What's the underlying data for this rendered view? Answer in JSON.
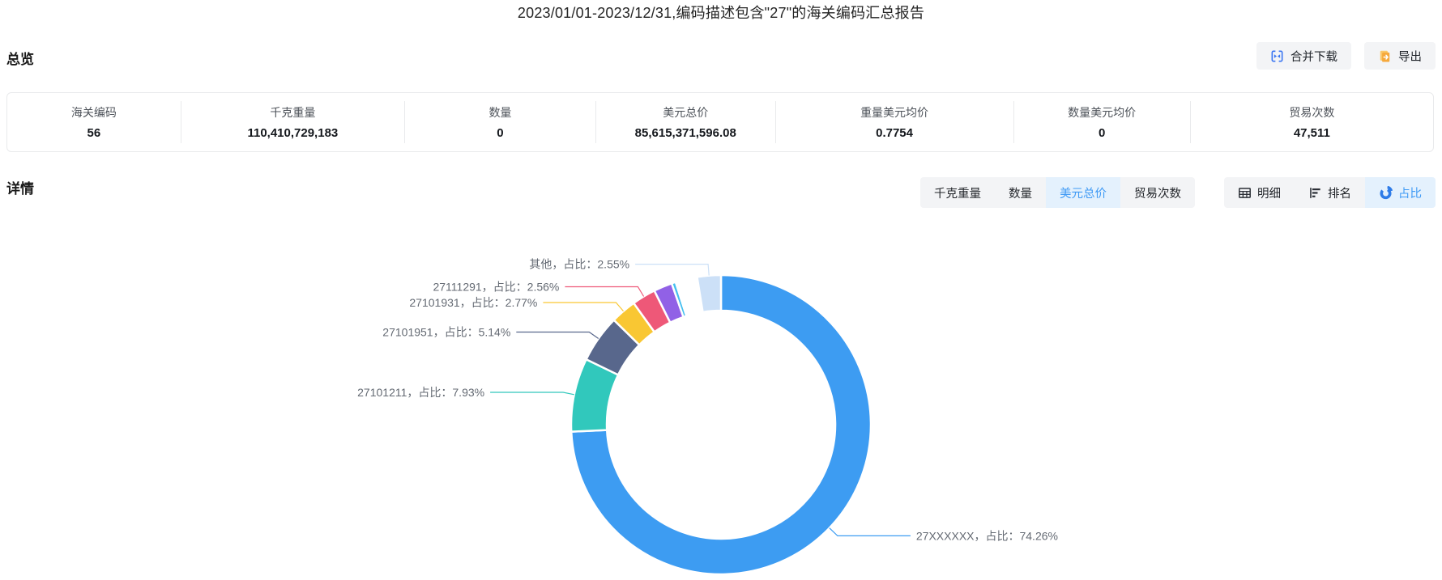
{
  "page": {
    "title": "2023/01/01-2023/12/31,编码描述包含\"27\"的海关编码汇总报告"
  },
  "overview": {
    "section_label": "总览",
    "buttons": [
      {
        "label": "合并下载",
        "icon": "merge-download-icon",
        "icon_color": "#3b76f2"
      },
      {
        "label": "导出",
        "icon": "export-icon",
        "icon_color": "#f6a93c"
      }
    ],
    "stats": [
      {
        "label": "海关编码",
        "value": "56"
      },
      {
        "label": "千克重量",
        "value": "110,410,729,183"
      },
      {
        "label": "数量",
        "value": "0"
      },
      {
        "label": "美元总价",
        "value": "85,615,371,596.08"
      },
      {
        "label": "重量美元均价",
        "value": "0.7754"
      },
      {
        "label": "数量美元均价",
        "value": "0"
      },
      {
        "label": "贸易次数",
        "value": "47,511"
      }
    ]
  },
  "detail": {
    "section_label": "详情",
    "metric_tabs": [
      {
        "label": "千克重量",
        "active": false
      },
      {
        "label": "数量",
        "active": false
      },
      {
        "label": "美元总价",
        "active": true
      },
      {
        "label": "贸易次数",
        "active": false
      }
    ],
    "view_tabs": [
      {
        "label": "明细",
        "icon": "table-icon",
        "active": false
      },
      {
        "label": "排名",
        "icon": "ranking-icon",
        "active": false
      },
      {
        "label": "占比",
        "icon": "donut-icon",
        "active": true
      }
    ],
    "active_color": "#3f9af5",
    "active_bg": "#e4f1fd"
  },
  "chart_data": {
    "type": "pie",
    "subtype": "donut",
    "title": "美元总价占比",
    "unit": "%",
    "label_format": "{name}，占比：{value}%",
    "legend_position": "none",
    "segments": [
      {
        "name": "27XXXXXX",
        "value": 74.26,
        "color": "#3d9cf2",
        "labeled": true,
        "label": "27XXXXXX，占比：74.26%"
      },
      {
        "name": "27101211",
        "value": 7.93,
        "color": "#31c8bc",
        "labeled": true,
        "label": "27101211，占比：7.93%"
      },
      {
        "name": "27101951",
        "value": 5.14,
        "color": "#58678c",
        "labeled": true,
        "label": "27101951，占比：5.14%"
      },
      {
        "name": "27101931",
        "value": 2.77,
        "color": "#f9c733",
        "labeled": true,
        "label": "27101931，占比：2.77%"
      },
      {
        "name": "27111291",
        "value": 2.56,
        "color": "#ee5878",
        "labeled": true,
        "label": "27111291，占比：2.56%"
      },
      {
        "name": "",
        "value": 2.0,
        "color": "#9161e6",
        "labeled": false,
        "estimated": true
      },
      {
        "name": "",
        "value": 0.45,
        "color": "#44bff0",
        "labeled": false,
        "estimated": true
      },
      {
        "name": "",
        "value": 0.2,
        "color": "#f6c9a8",
        "labeled": false,
        "estimated": true
      },
      {
        "name": "",
        "value": 2.14,
        "color": "#ffffff",
        "labeled": false,
        "estimated": true
      },
      {
        "name": "其他",
        "value": 2.55,
        "color": "#cce0f7",
        "labeled": true,
        "label": "其他，占比：2.55%"
      }
    ]
  }
}
